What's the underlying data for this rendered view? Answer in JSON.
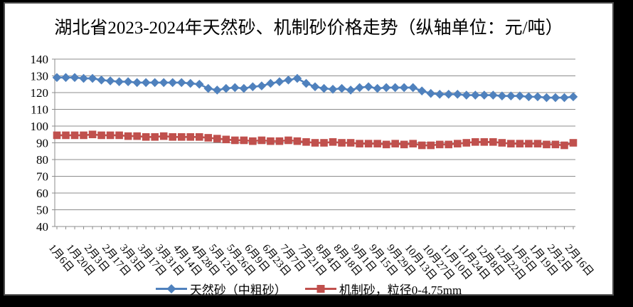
{
  "title": "湖北省2023-2024年天然砂、机制砂价格走势（纵轴单位：元/吨）",
  "colors": {
    "natural_sand": "#4F81BD",
    "machine_sand": "#C0504D",
    "gridline": "#8c8c8c",
    "axis": "#8c8c8c",
    "text": "#000000",
    "panel_bg": "#ffffff",
    "frame": "#000000"
  },
  "chart_data": {
    "type": "line",
    "title": "湖北省2023-2024年天然砂、机制砂价格走势（纵轴单位：元/吨）",
    "ylabel_unit": "元/吨",
    "ylim": [
      40,
      140
    ],
    "y_ticks": [
      140,
      130,
      120,
      110,
      100,
      90,
      80,
      70,
      60,
      50,
      40
    ],
    "grid": true,
    "legend_position": "bottom",
    "x_tick_labels": [
      "1月6日",
      "1月20日",
      "2月3日",
      "2月17日",
      "3月3日",
      "3月17日",
      "3月31日",
      "4月14日",
      "4月28日",
      "5月12日",
      "5月26日",
      "6月9日",
      "6月23日",
      "7月7日",
      "7月21日",
      "8月4日",
      "8月18日",
      "9月1日",
      "9月15日",
      "9月29日",
      "10月13日",
      "10月27日",
      "11月10日",
      "11月24日",
      "12月8日",
      "12月22日",
      "1月5日",
      "1月19日",
      "2月2日",
      "2月16日"
    ],
    "x_label_every": 2,
    "series": [
      {
        "name": "天然砂（中粗砂）",
        "marker": "diamond",
        "color": "#4F81BD",
        "values": [
          129,
          129,
          129,
          128.5,
          128.5,
          127.5,
          127,
          126.5,
          126.5,
          126,
          126,
          126,
          126,
          126,
          126,
          125.5,
          125,
          122.5,
          121.5,
          122.5,
          123,
          122.5,
          123.5,
          124,
          125.5,
          126.5,
          127.5,
          128.5,
          125.5,
          123.5,
          122.5,
          122,
          122.5,
          121.5,
          123,
          123.5,
          122.5,
          123,
          123,
          123,
          123,
          121,
          119.5,
          119,
          119,
          119,
          118.5,
          118.5,
          118.5,
          118.5,
          118,
          118,
          118,
          117.5,
          117.5,
          117,
          117,
          117,
          117.5
        ]
      },
      {
        "name": "机制砂，粒径0-4.75mm",
        "marker": "square",
        "color": "#C0504D",
        "values": [
          94.5,
          94.5,
          94.5,
          94.5,
          95,
          94.5,
          94.5,
          94.5,
          94,
          94,
          93.5,
          93.5,
          94,
          93.5,
          93.5,
          93.5,
          93.5,
          93,
          92.5,
          92,
          91.5,
          91.5,
          91,
          91.5,
          91,
          91,
          91.5,
          91,
          90.5,
          90,
          90,
          90.5,
          90,
          90,
          89.5,
          89.5,
          89.5,
          89,
          89.5,
          89,
          89.5,
          88.5,
          88.5,
          89,
          89,
          89.5,
          90,
          90.5,
          90.5,
          90.5,
          90,
          89.5,
          89.5,
          89.5,
          89.5,
          89,
          89,
          88.5,
          90
        ]
      }
    ]
  }
}
